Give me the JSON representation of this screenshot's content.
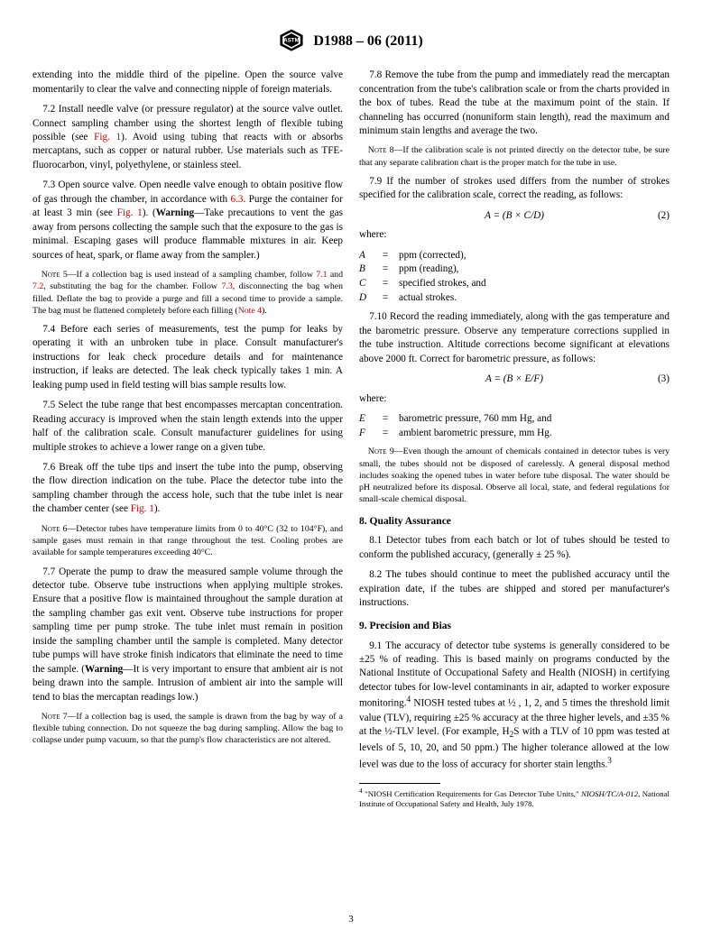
{
  "header": {
    "doc_id": "D1988 – 06 (2011)"
  },
  "left": {
    "p_open": "extending into the middle third of the pipeline. Open the source valve momentarily to clear the valve and connecting nipple of foreign materials.",
    "p72_a": "7.2 Install needle valve (or pressure regulator) at the source valve outlet. Connect sampling chamber using the shortest length of flexible tubing possible (see ",
    "p72_ref": "Fig. 1",
    "p72_b": "). Avoid using tubing that reacts with or absorbs mercaptans, such as copper or natural rubber. Use materials such as TFE-fluorocarbon, vinyl, polyethylene, or stainless steel.",
    "p73_a": "7.3 Open source valve. Open needle valve enough to obtain positive flow of gas through the chamber, in accordance with ",
    "p73_ref1": "6.3",
    "p73_b": ". Purge the container for at least 3 min (see ",
    "p73_ref2": "Fig. 1",
    "p73_c": "). (",
    "p73_warn": "Warning",
    "p73_d": "—Take precautions to vent the gas away from persons collecting the sample such that the exposure to the gas is minimal. Escaping gases will produce flammable mixtures in air. Keep sources of heat, spark, or flame away from the sampler.)",
    "note5_sc": "Note",
    "note5_a": " 5—If a collection bag is used instead of a sampling chamber, follow ",
    "note5_r1": "7.1",
    "note5_b": " and ",
    "note5_r2": "7.2",
    "note5_c": ", substituting the bag for the chamber. Follow ",
    "note5_r3": "7.3",
    "note5_d": ", disconnecting the bag when filled. Deflate the bag to provide a purge and fill a second time to provide a sample. The bag must be flattened completely before each filling (",
    "note5_r4": "Note 4",
    "note5_e": ").",
    "p74": "7.4 Before each series of measurements, test the pump for leaks by operating it with an unbroken tube in place. Consult manufacturer's instructions for leak check procedure details and for maintenance instruction, if leaks are detected. The leak check typically takes 1 min. A leaking pump used in field testing will bias sample results low.",
    "p75": "7.5 Select the tube range that best encompasses mercaptan concentration. Reading accuracy is improved when the stain length extends into the upper half of the calibration scale. Consult manufacturer guidelines for using multiple strokes to achieve a lower range on a given tube.",
    "p76_a": "7.6 Break off the tube tips and insert the tube into the pump, observing the flow direction indication on the tube. Place the detector tube into the sampling chamber through the access hole, such that the tube inlet is near the chamber center (see ",
    "p76_ref": "Fig. 1",
    "p76_b": ").",
    "note6_sc": "Note",
    "note6": " 6—Detector tubes have temperature limits from 0 to 40°C (32 to 104°F), and sample gases must remain in that range throughout the test. Cooling probes are available for sample temperatures exceeding 40°C.",
    "p77_a": "7.7 Operate the pump to draw the measured sample volume through the detector tube. Observe tube instructions when applying multiple strokes. Ensure that a positive flow is maintained throughout the sample duration at the sampling chamber gas exit vent. Observe tube instructions for proper sampling time per pump stroke. The tube inlet must remain in position inside the sampling chamber until the sample is completed. Many detector tube pumps will have stroke finish indicators that eliminate the need to time the sample. (",
    "p77_warn": "Warning",
    "p77_b": "—It is very important to ensure that ambient air is not being drawn into the sample. Intrusion of ambient air into the sample will tend to bias the mercaptan readings low.)",
    "note7_sc": "Note",
    "note7": " 7—If a collection bag is used, the sample is drawn from the bag by way of a flexible tubing connection. Do not squeeze the bag during sampling. Allow the bag to collapse under pump vacuum, so that the pump's flow characteristics are not altered."
  },
  "right": {
    "p78": "7.8 Remove the tube from the pump and immediately read the mercaptan concentration from the tube's calibration scale or from the charts provided in the box of tubes. Read the tube at the maximum point of the stain. If channeling has occurred (nonuniform stain length), read the maximum and minimum stain lengths and average the two.",
    "note8_sc": "Note",
    "note8": " 8—If the calibration scale is not printed directly on the detector tube, be sure that any separate calibration chart is the proper match for the tube in use.",
    "p79": "7.9 If the number of strokes used differs from the number of strokes specified for the calibration scale, correct the reading, as follows:",
    "eq2": "A = (B × C/D)",
    "eq2_num": "(2)",
    "where": "where:",
    "defs2": [
      {
        "sym": "A",
        "txt": "ppm (corrected),"
      },
      {
        "sym": "B",
        "txt": "ppm (reading),"
      },
      {
        "sym": "C",
        "txt": "specified strokes, and"
      },
      {
        "sym": "D",
        "txt": "actual strokes."
      }
    ],
    "p710": "7.10 Record the reading immediately, along with the gas temperature and the barometric pressure. Observe any temperature corrections supplied in the tube instruction. Altitude corrections become significant at elevations above 2000 ft. Correct for barometric pressure, as follows:",
    "eq3": "A = (B × E/F)",
    "eq3_num": "(3)",
    "defs3": [
      {
        "sym": "E",
        "txt": "barometric pressure, 760 mm Hg, and"
      },
      {
        "sym": "F",
        "txt": "ambient barometric pressure, mm Hg."
      }
    ],
    "note9_sc": "Note",
    "note9": " 9—Even though the amount of chemicals contained in detector tubes is very small, the tubes should not be disposed of carelessly. A general disposal method includes soaking the opened tubes in water before tube disposal. The water should be pH neutralized before its disposal. Observe all local, state, and federal regulations for small-scale chemical disposal.",
    "sec8": "8. Quality Assurance",
    "p81": "8.1 Detector tubes from each batch or lot of tubes should be tested to conform the published accuracy, (generally ± 25 %).",
    "p82": "8.2 The tubes should continue to meet the published accuracy until the expiration date, if the tubes are shipped and stored per manufacturer's instructions.",
    "sec9": "9. Precision and Bias",
    "p91_a": "9.1 The accuracy of detector tube systems is generally considered to be ±25 % of reading. This is based mainly on programs conducted by the National Institute of Occupational Safety and Health (NIOSH) in certifying detector tubes for low-level contaminants in air, adapted to worker exposure monitoring.",
    "p91_b": " NIOSH tested tubes at ½ , 1, 2, and 5 times the threshold limit value (TLV), requiring ±25 % accuracy at the three higher levels, and ±35 % at the ½-TLV level. (For example, H",
    "p91_c": "S with a TLV of 10 ppm was tested at levels of 5, 10, 20, and 50 ppm.) The higher tolerance allowed at the low level was due to the loss of accuracy for shorter stain lengths.",
    "fn4_a": " \"NIOSH Certification Requirements for Gas Detector Tube Units,\" ",
    "fn4_i": "NIOSH/TC/A-012",
    "fn4_b": ", National Institute of Occupational Safety and Health, July 1978."
  },
  "page_num": "3",
  "colors": {
    "ref": "#cc0000",
    "text": "#000000",
    "bg": "#ffffff"
  },
  "typography": {
    "body_fontsize_pt": 11.2,
    "note_fontsize_pt": 9.8,
    "footnote_fontsize_pt": 8.8,
    "header_fontsize_pt": 16,
    "font_family": "Times New Roman"
  }
}
